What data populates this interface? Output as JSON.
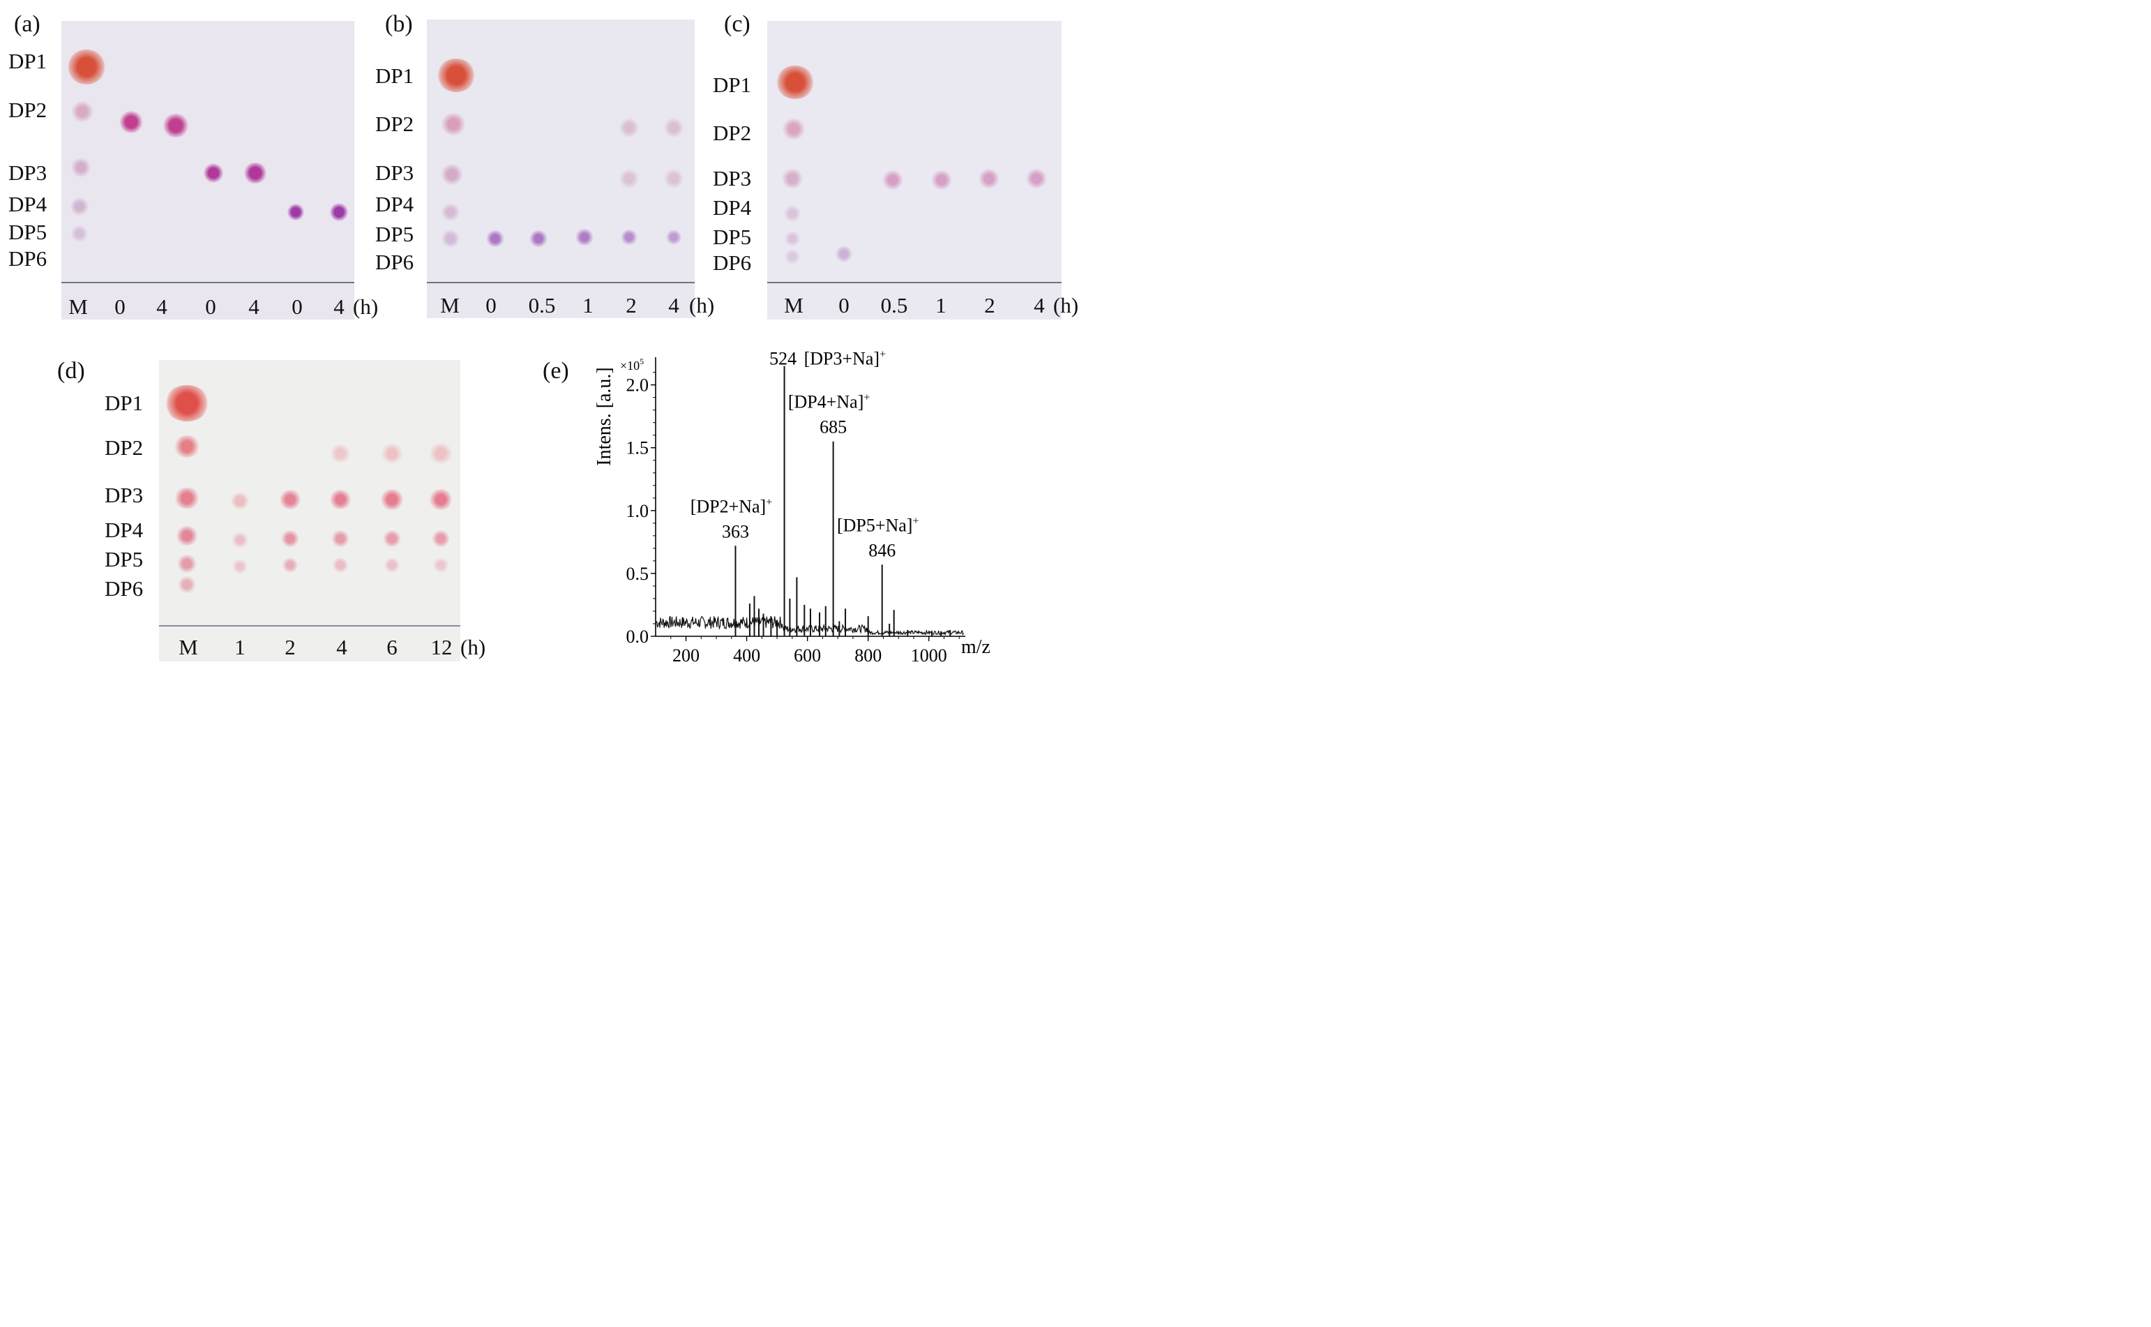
{
  "figure": {
    "panels": {
      "a": {
        "label": "(a)",
        "dp_labels": [
          "DP1",
          "DP2",
          "DP3",
          "DP4",
          "DP5",
          "DP6"
        ],
        "lanes": [
          "M",
          "0",
          "4",
          "0",
          "4",
          "0",
          "4"
        ],
        "unit": "(h)"
      },
      "b": {
        "label": "(b)",
        "dp_labels": [
          "DP1",
          "DP2",
          "DP3",
          "DP4",
          "DP5",
          "DP6"
        ],
        "lanes": [
          "M",
          "0",
          "0.5",
          "1",
          "2",
          "4"
        ],
        "unit": "(h)"
      },
      "c": {
        "label": "(c)",
        "dp_labels": [
          "DP1",
          "DP2",
          "DP3",
          "DP4",
          "DP5",
          "DP6"
        ],
        "lanes": [
          "M",
          "0",
          "0.5",
          "1",
          "2",
          "4"
        ],
        "unit": "(h)"
      },
      "d": {
        "label": "(d)",
        "dp_labels": [
          "DP1",
          "DP2",
          "DP3",
          "DP4",
          "DP5",
          "DP6"
        ],
        "lanes": [
          "M",
          "1",
          "2",
          "4",
          "6",
          "12"
        ],
        "unit": "(h)"
      },
      "e": {
        "label": "(e)"
      }
    },
    "colors": {
      "plate_abc": "#e9e6ef",
      "plate_d": "#efefee",
      "dp1_spot": "#d8503a",
      "purple_spot": "#b04aa8",
      "pink_spot": "#e0707e"
    }
  },
  "chart_data": {
    "type": "line",
    "title": "",
    "xlabel": "m/z",
    "ylabel": "Intens. [a.u.]",
    "y_multiplier": "×10",
    "y_multiplier_exp": "5",
    "xlim": [
      100,
      1120
    ],
    "ylim": [
      0,
      2.22
    ],
    "x_ticks": [
      200,
      400,
      600,
      800,
      1000
    ],
    "x_tick_labels": [
      "200",
      "400",
      "600",
      "800",
      "1000"
    ],
    "y_ticks": [
      0.0,
      0.5,
      1.0,
      1.5,
      2.0
    ],
    "y_tick_labels": [
      "0.0",
      "0.5",
      "1.0",
      "1.5",
      "2.0"
    ],
    "peaks": [
      {
        "mz": 363,
        "intensity": 0.72
      },
      {
        "mz": 524,
        "intensity": 2.15
      },
      {
        "mz": 685,
        "intensity": 1.55
      },
      {
        "mz": 846,
        "intensity": 0.57
      },
      {
        "mz": 410,
        "intensity": 0.26
      },
      {
        "mz": 425,
        "intensity": 0.32
      },
      {
        "mz": 440,
        "intensity": 0.22
      },
      {
        "mz": 455,
        "intensity": 0.18
      },
      {
        "mz": 480,
        "intensity": 0.16
      },
      {
        "mz": 500,
        "intensity": 0.13
      },
      {
        "mz": 542,
        "intensity": 0.3
      },
      {
        "mz": 565,
        "intensity": 0.47
      },
      {
        "mz": 590,
        "intensity": 0.25
      },
      {
        "mz": 610,
        "intensity": 0.22
      },
      {
        "mz": 640,
        "intensity": 0.19
      },
      {
        "mz": 660,
        "intensity": 0.24
      },
      {
        "mz": 705,
        "intensity": 0.12
      },
      {
        "mz": 725,
        "intensity": 0.22
      },
      {
        "mz": 800,
        "intensity": 0.16
      },
      {
        "mz": 870,
        "intensity": 0.1
      },
      {
        "mz": 885,
        "intensity": 0.21
      },
      {
        "mz": 930,
        "intensity": 0.05
      },
      {
        "mz": 1010,
        "intensity": 0.04
      },
      {
        "mz": 1040,
        "intensity": 0.04
      },
      {
        "mz": 1070,
        "intensity": 0.05
      }
    ],
    "annotations": [
      {
        "mz": 363,
        "value": "363",
        "label": "[DP2+Na]",
        "sup": "+"
      },
      {
        "mz": 524,
        "value": "524",
        "label": "[DP3+Na]",
        "sup": "+"
      },
      {
        "mz": 685,
        "value": "685",
        "label": "[DP4+Na]",
        "sup": "+"
      },
      {
        "mz": 846,
        "value": "846",
        "label": "[DP5+Na]",
        "sup": "+"
      }
    ]
  }
}
